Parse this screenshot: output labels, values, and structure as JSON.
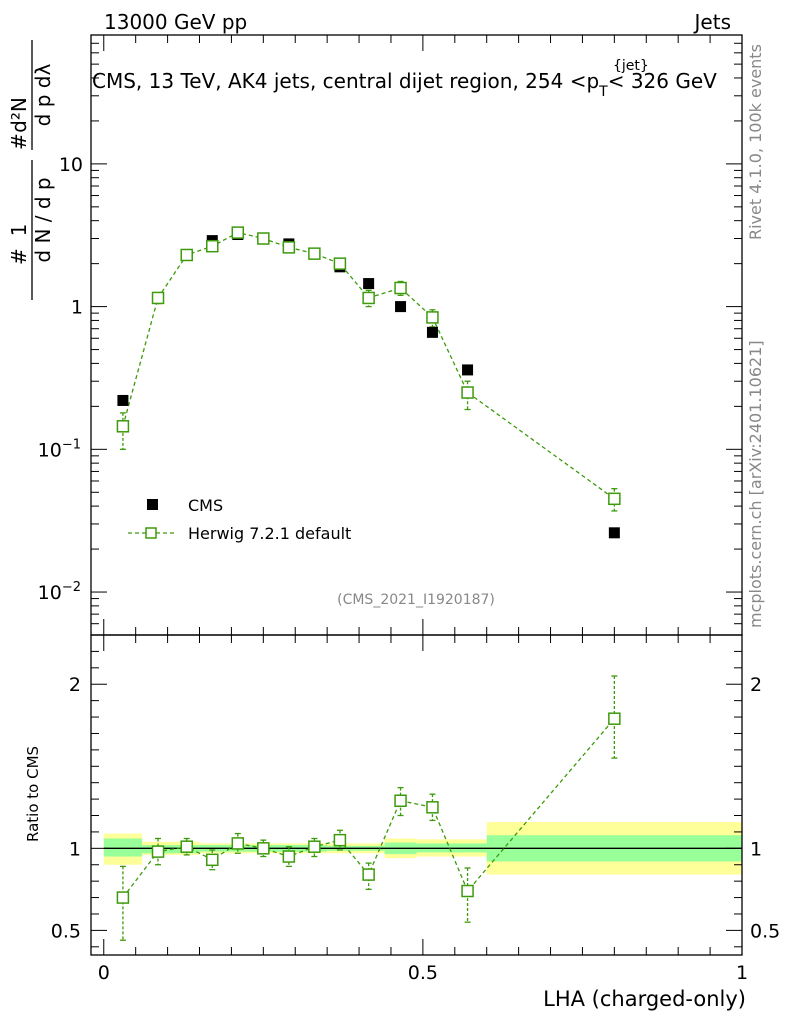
{
  "colors": {
    "data": "#000000",
    "mc": "#3d9a0b",
    "band_inner": "#99ff99",
    "band_outer": "#ffff99",
    "watermark": "#888888"
  },
  "header": {
    "left": "13000 GeV pp",
    "right": "Jets"
  },
  "side_text": {
    "rivet": "Rivet 4.1.0,  100k events",
    "mcplots": "mcplots.cern.ch [arXiv:2401.10621]"
  },
  "chart_data": [
    {
      "type": "scatter",
      "id": "main",
      "title": "CMS, 13 TeV, AK4 jets, central dijet region, 254 < p_T^{jet} < 326 GeV",
      "title_main": "CMS, 13 TeV, AK4 jets, central dijet region, 254 <p",
      "title_sub": "T",
      "title_sup": "{jet}",
      "title_end": "< 326 GeV",
      "ylabel": "1/(dN/dp_T) d²N/(dp_T dλ)",
      "yscale": "log",
      "ylim": [
        0.005,
        80
      ],
      "xlim": [
        -0.02,
        1.0
      ],
      "y_ticks": [
        {
          "value": 0.01,
          "base": "10",
          "exp": "−2"
        },
        {
          "value": 0.1,
          "base": "10",
          "exp": "−1"
        },
        {
          "value": 1,
          "base": "1",
          "exp": ""
        },
        {
          "value": 10,
          "base": "10",
          "exp": ""
        }
      ],
      "watermark": "(CMS_2021_I1920187)",
      "legend": [
        {
          "label": "CMS",
          "marker": "filled-square"
        },
        {
          "label": "Herwig 7.2.1 default",
          "marker": "open-square-dashed"
        }
      ],
      "series": [
        {
          "name": "CMS",
          "x": [
            0.03,
            0.085,
            0.13,
            0.17,
            0.21,
            0.25,
            0.29,
            0.33,
            0.37,
            0.415,
            0.465,
            0.515,
            0.57,
            0.8
          ],
          "y": [
            0.22,
            1.15,
            2.3,
            2.9,
            3.2,
            3.0,
            2.75,
            2.35,
            1.9,
            1.45,
            1.0,
            0.66,
            0.36,
            0.026
          ]
        },
        {
          "name": "Herwig 7.2.1 default",
          "x": [
            0.03,
            0.085,
            0.13,
            0.17,
            0.21,
            0.25,
            0.29,
            0.33,
            0.37,
            0.415,
            0.465,
            0.515,
            0.57,
            0.8
          ],
          "y": [
            0.145,
            1.15,
            2.3,
            2.65,
            3.3,
            3.0,
            2.6,
            2.35,
            2.0,
            1.15,
            1.35,
            0.84,
            0.25,
            0.045
          ],
          "err_up": [
            0.18,
            1.25,
            2.4,
            2.8,
            3.45,
            3.1,
            2.75,
            2.45,
            2.15,
            1.3,
            1.5,
            0.95,
            0.3,
            0.053
          ],
          "err_down": [
            0.1,
            1.05,
            2.2,
            2.5,
            3.15,
            2.9,
            2.45,
            2.25,
            1.85,
            1.0,
            1.2,
            0.72,
            0.19,
            0.037
          ]
        }
      ]
    },
    {
      "type": "scatter",
      "id": "ratio",
      "xlabel": "LHA (charged-only)",
      "ylabel": "Ratio to CMS",
      "ylim": [
        0.35,
        2.3
      ],
      "xlim": [
        -0.02,
        1.0
      ],
      "y_ticks": [
        {
          "value": 0.5,
          "label": "0.5"
        },
        {
          "value": 1,
          "label": "1"
        },
        {
          "value": 2,
          "label": "2"
        }
      ],
      "x_ticks": [
        {
          "value": 0,
          "label": "0"
        },
        {
          "value": 0.5,
          "label": "0.5"
        },
        {
          "value": 1,
          "label": "1"
        }
      ],
      "bands": [
        {
          "x0": 0.0,
          "x1": 0.06,
          "in_lo": 0.95,
          "in_hi": 1.06,
          "out_lo": 0.9,
          "out_hi": 1.09
        },
        {
          "x0": 0.06,
          "x1": 0.15,
          "in_lo": 0.97,
          "in_hi": 1.02,
          "out_lo": 0.96,
          "out_hi": 1.04
        },
        {
          "x0": 0.15,
          "x1": 0.35,
          "in_lo": 0.98,
          "in_hi": 1.02,
          "out_lo": 0.97,
          "out_hi": 1.03
        },
        {
          "x0": 0.35,
          "x1": 0.44,
          "in_lo": 0.985,
          "in_hi": 1.015,
          "out_lo": 0.97,
          "out_hi": 1.03
        },
        {
          "x0": 0.44,
          "x1": 0.49,
          "in_lo": 0.965,
          "in_hi": 1.035,
          "out_lo": 0.94,
          "out_hi": 1.06
        },
        {
          "x0": 0.49,
          "x1": 0.6,
          "in_lo": 0.975,
          "in_hi": 1.03,
          "out_lo": 0.95,
          "out_hi": 1.055
        },
        {
          "x0": 0.6,
          "x1": 1.0,
          "in_lo": 0.92,
          "in_hi": 1.08,
          "out_lo": 0.84,
          "out_hi": 1.16
        }
      ],
      "series": [
        {
          "name": "Herwig 7.2.1 default / CMS",
          "x": [
            0.03,
            0.085,
            0.13,
            0.17,
            0.21,
            0.25,
            0.29,
            0.33,
            0.37,
            0.415,
            0.465,
            0.515,
            0.57,
            0.8
          ],
          "y": [
            0.7,
            0.98,
            1.01,
            0.93,
            1.03,
            1.0,
            0.95,
            1.01,
            1.05,
            0.84,
            1.29,
            1.25,
            0.74,
            1.79
          ],
          "err_up": [
            0.89,
            1.06,
            1.06,
            0.99,
            1.09,
            1.05,
            1.01,
            1.06,
            1.11,
            0.91,
            1.37,
            1.33,
            0.88,
            2.05
          ],
          "err_down": [
            0.44,
            0.9,
            0.96,
            0.87,
            0.97,
            0.95,
            0.89,
            0.95,
            0.99,
            0.75,
            1.2,
            1.17,
            0.55,
            1.55
          ]
        }
      ]
    }
  ]
}
